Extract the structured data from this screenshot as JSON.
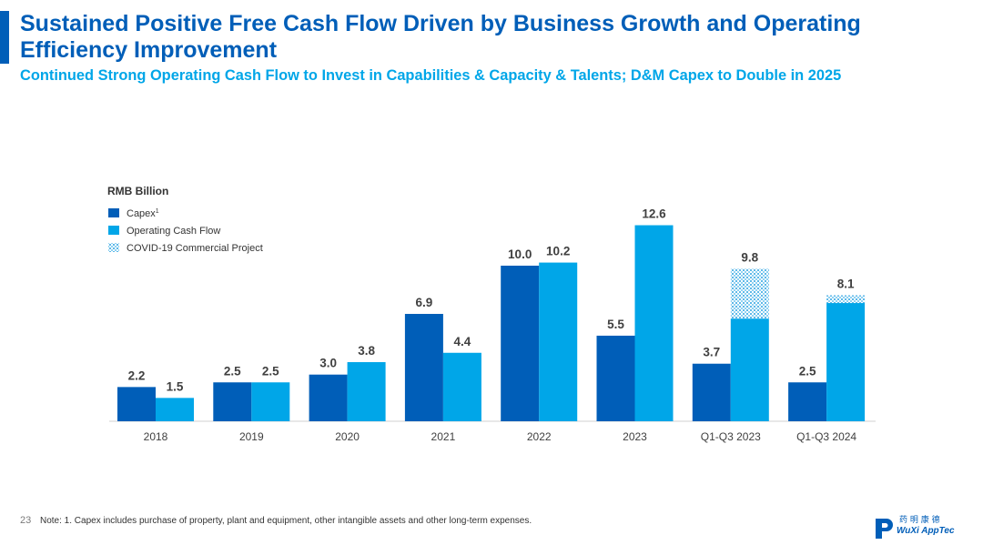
{
  "header": {
    "title": "Sustained Positive Free Cash Flow Driven by Business Growth and Operating Efficiency Improvement",
    "subtitle": "Continued Strong Operating Cash Flow to Invest in Capabilities & Capacity & Talents; D&M Capex to Double in 2025"
  },
  "colors": {
    "title": "#005EB8",
    "subtitle": "#00A6E8",
    "capex": "#005EB8",
    "ocf": "#00A6E8",
    "covid": "#7FC8EE"
  },
  "chart_data": {
    "type": "bar",
    "unit_label": "RMB Billion",
    "categories": [
      "2018",
      "2019",
      "2020",
      "2021",
      "2022",
      "2023",
      "Q1-Q3 2023",
      "Q1-Q3 2024"
    ],
    "series": [
      {
        "name": "Capex",
        "footnote_marker": "1",
        "values": [
          2.2,
          2.5,
          3.0,
          6.9,
          10.0,
          5.5,
          3.7,
          2.5
        ]
      },
      {
        "name": "Operating Cash Flow",
        "values": [
          1.5,
          2.5,
          3.8,
          4.4,
          10.2,
          12.6,
          9.8,
          8.1
        ]
      },
      {
        "name": "COVID-19 Commercial Project",
        "stacked_on": "Operating Cash Flow",
        "values": [
          0,
          0,
          0,
          0,
          0,
          0,
          3.2,
          0.5
        ]
      }
    ],
    "data_labels": {
      "capex": [
        "2.2",
        "2.5",
        "3.0",
        "6.9",
        "10.0",
        "5.5",
        "3.7",
        "2.5"
      ],
      "ocf": [
        "1.5",
        "2.5",
        "3.8",
        "4.4",
        "10.2",
        "12.6",
        "9.8",
        "8.1"
      ]
    },
    "ylim": [
      0,
      12.6
    ],
    "grid": false,
    "legend": "top-left"
  },
  "footer": {
    "page_number": "23",
    "note": "Note: 1. Capex includes purchase of property, plant and equipment, other intangible assets and other long-term expenses.",
    "logo_cn": "药 明 康 德",
    "logo_en": "WuXi AppTec"
  }
}
